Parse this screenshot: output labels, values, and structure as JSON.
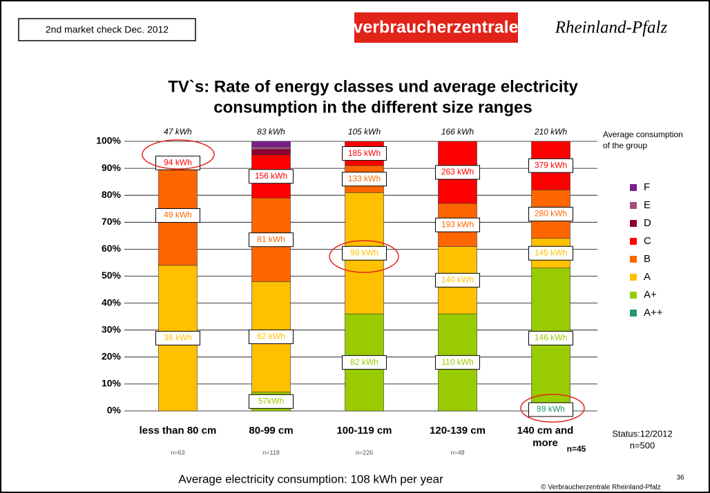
{
  "header": {
    "badge": "2nd market check  Dec. 2012",
    "logo": "verbraucherzentrale",
    "logo_region": "Rheinland-Pfalz",
    "slide_number": "36",
    "copyright": "© Verbraucherzentrale Rheinland-Pfalz"
  },
  "chart_data": {
    "type": "stacked_bar",
    "title": [
      "TV`s: Rate of energy classes und average electricity",
      "consumption in the different size ranges"
    ],
    "categories": [
      "less than 80 cm",
      "80-99 cm",
      "100-119 cm",
      "120-139 cm",
      "140 cm and more"
    ],
    "sample_sizes": [
      "n=63",
      "n=118",
      "n=226",
      "n=48",
      "n=45"
    ],
    "group_consumption": [
      "47 kWh",
      "83 kWh",
      "105 kWh",
      "166 kWh",
      "210 kWh"
    ],
    "group_consumption_label": [
      "Average consumption",
      "of the group"
    ],
    "series": [
      {
        "name": "A++",
        "color": "#1f9a6b",
        "values": [
          null,
          null,
          null,
          null,
          1
        ],
        "segment_labels": [
          null,
          null,
          null,
          null,
          "89 kWh"
        ]
      },
      {
        "name": "A+",
        "color": "#99cc00",
        "values": [
          null,
          7,
          36,
          36,
          52
        ],
        "segment_labels": [
          null,
          "57kWh",
          "82 kWh",
          "110 kWh",
          "146 kWh"
        ]
      },
      {
        "name": "A",
        "color": "#ffc000",
        "values": [
          54,
          41,
          45,
          25,
          11
        ],
        "segment_labels": [
          "38 kWh",
          "62 kWh",
          "99 kWh",
          "140 kWh",
          "145 kWh"
        ]
      },
      {
        "name": "B",
        "color": "#ff6600",
        "values": [
          37,
          31,
          10,
          16,
          18
        ],
        "segment_labels": [
          "49 kWh",
          "81 kWh",
          "133 kWh",
          "193 kWh",
          "280 kWh"
        ]
      },
      {
        "name": "C",
        "color": "#ff0000",
        "values": [
          2,
          16,
          9,
          23,
          18
        ],
        "segment_labels": [
          "94 kWh",
          "156 kWh",
          "185 kWh",
          "263 kWh",
          "379 kWh"
        ]
      },
      {
        "name": "D",
        "color": "#8b0030",
        "values": [
          null,
          2,
          null,
          null,
          null
        ],
        "segment_labels": [
          null,
          null,
          null,
          null,
          null
        ]
      },
      {
        "name": "E",
        "color": "#a0507d",
        "values": [
          null,
          1,
          null,
          null,
          null
        ],
        "segment_labels": [
          null,
          null,
          null,
          null,
          null
        ]
      },
      {
        "name": "F",
        "color": "#7b1f8c",
        "values": [
          null,
          2,
          null,
          null,
          null
        ],
        "segment_labels": [
          null,
          null,
          null,
          null,
          null
        ]
      }
    ],
    "ylim": [
      0,
      100
    ],
    "yticks": [
      {
        "value": 0,
        "label": "0%"
      },
      {
        "value": 10,
        "label": "10%"
      },
      {
        "value": 20,
        "label": "20%"
      },
      {
        "value": 30,
        "label": "30%"
      },
      {
        "value": 40,
        "label": "40%"
      },
      {
        "value": 50,
        "label": "50%"
      },
      {
        "value": 60,
        "label": "60%"
      },
      {
        "value": 70,
        "label": "70%"
      },
      {
        "value": 80,
        "label": "80%"
      },
      {
        "value": 90,
        "label": "90%"
      },
      {
        "value": 100,
        "label": "100%"
      }
    ],
    "grid": true,
    "status": [
      "Status:12/2012",
      "n=500"
    ],
    "footnote": "Average electricity consumption: 108 kWh per year"
  }
}
